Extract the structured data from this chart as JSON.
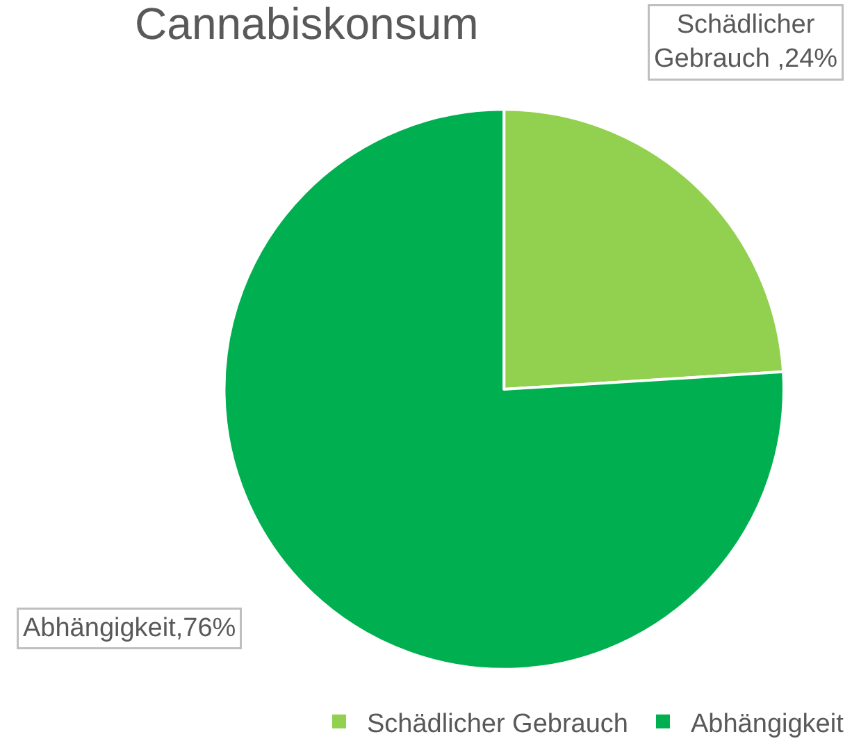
{
  "chart_data": {
    "type": "pie",
    "title": "Cannabiskonsum",
    "categories": [
      "Schädlicher Gebrauch",
      "Abhängigkeit"
    ],
    "values": [
      24,
      76
    ],
    "colors": [
      "#92d050",
      "#00b050"
    ],
    "value_labels": [
      "Schädlicher\nGebrauch ,24%",
      "Abhängigkeit,76%"
    ],
    "legend": "bottom right"
  }
}
